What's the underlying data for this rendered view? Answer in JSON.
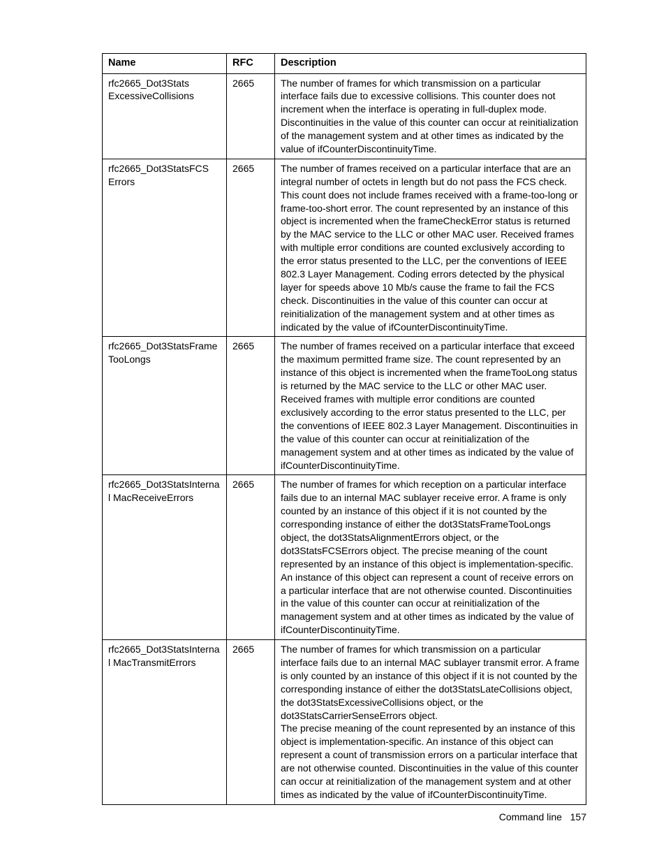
{
  "table": {
    "headers": {
      "name": "Name",
      "rfc": "RFC",
      "description": "Description"
    },
    "rows": [
      {
        "name": "rfc2665_Dot3Stats ExcessiveCollisions",
        "rfc": "2665",
        "desc_p1": "The number of frames for which transmission on a particular interface fails due to excessive collisions. This counter does not increment when the interface is operating in full-duplex mode. Discontinuities in the value of this counter can occur at reinitialization of the management system and at other times as indicated by the value of ifCounterDiscontinuityTime."
      },
      {
        "name": "rfc2665_Dot3StatsFCS Errors",
        "rfc": "2665",
        "desc_p1": "The number of frames received on a particular interface that are an integral number of octets in length but do not pass the FCS check. This count does not include frames received with a frame-too-long or frame-too-short error. The count represented by an instance of this object is incremented when the frameCheckError status is returned by the MAC service to the LLC or other MAC user. Received frames with multiple error conditions are counted exclusively according to the error status presented to the LLC, per the conventions of IEEE 802.3 Layer Management. Coding errors detected by the physical layer for speeds above 10 Mb/s cause the frame to fail the FCS check. Discontinuities in the value of this counter can occur at reinitialization of the management system and at other times as indicated by the value of ifCounterDiscontinuityTime."
      },
      {
        "name": "rfc2665_Dot3StatsFrame TooLongs",
        "rfc": "2665",
        "desc_p1": "The number of frames received on a particular interface that exceed the maximum permitted frame size. The count represented by an instance of this object is incremented when the frameTooLong status is returned by the MAC service to the LLC or other MAC user. Received frames with multiple error conditions are counted exclusively according to the error status presented to the LLC, per the conventions of IEEE 802.3 Layer Management. Discontinuities in the value of this counter can occur at reinitialization of the management system and at other times as indicated by the value of ifCounterDiscontinuityTime."
      },
      {
        "name": "rfc2665_Dot3StatsInternal MacReceiveErrors",
        "rfc": "2665",
        "desc_p1": "The number of frames for which reception on a particular interface fails due to an internal MAC sublayer receive error. A frame is only counted by an instance of this object if it is not counted by the corresponding instance of either the dot3StatsFrameTooLongs object, the dot3StatsAlignmentErrors object, or the dot3StatsFCSErrors object. The precise meaning of the count represented by an instance of this object is implementation-specific. An instance of this object can represent a count of receive errors on a particular interface that are not otherwise counted. Discontinuities in the value of this counter can occur at reinitialization of the management system and at other times as indicated by the value of ifCounterDiscontinuityTime."
      },
      {
        "name": "rfc2665_Dot3StatsInternal MacTransmitErrors",
        "rfc": "2665",
        "desc_p1": "The number of frames for which transmission on a particular interface fails due to an internal MAC sublayer transmit error. A frame is only counted by an instance of this object if it is not counted by the corresponding instance of either the dot3StatsLateCollisions object, the dot3StatsExcessiveCollisions object, or the dot3StatsCarrierSenseErrors object.",
        "desc_p2": "The precise meaning of the count represented by an instance of this object is implementation-specific. An instance of this object can represent a count of transmission errors on a particular interface that are not otherwise counted. Discontinuities in the value of this counter can occur at reinitialization of the management system and at other times as indicated by the value of ifCounterDiscontinuityTime."
      }
    ]
  },
  "footer": {
    "label": "Command line",
    "page": "157"
  }
}
